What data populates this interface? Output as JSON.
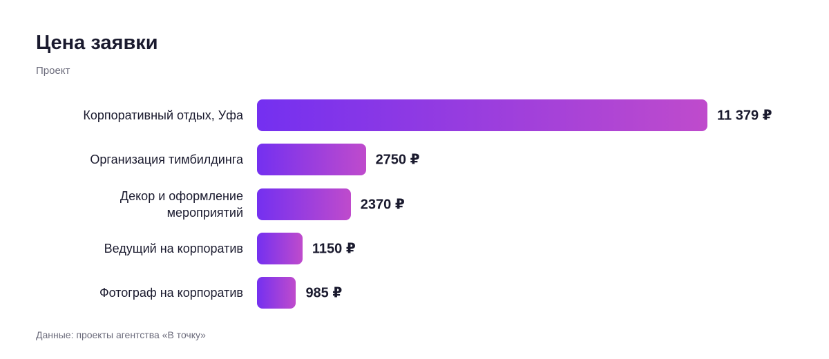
{
  "chart_data": {
    "type": "bar",
    "orientation": "horizontal",
    "title": "Цена заявки",
    "subtitle": "Проект",
    "categories": [
      "Корпоративный отдых, Уфа",
      "Организация тимбилдинга",
      "Декор и оформление мероприятий",
      "Ведущий на корпоратив",
      "Фотограф на корпоратив"
    ],
    "values": [
      11379,
      2750,
      2370,
      1150,
      985
    ],
    "value_labels": [
      "11 379 ₽",
      "2750 ₽",
      "2370 ₽",
      "1150 ₽",
      "985 ₽"
    ],
    "gradient": [
      "#7430f0",
      "#bf4bcc"
    ],
    "source": "Данные: проекты агентства «В точку»"
  }
}
